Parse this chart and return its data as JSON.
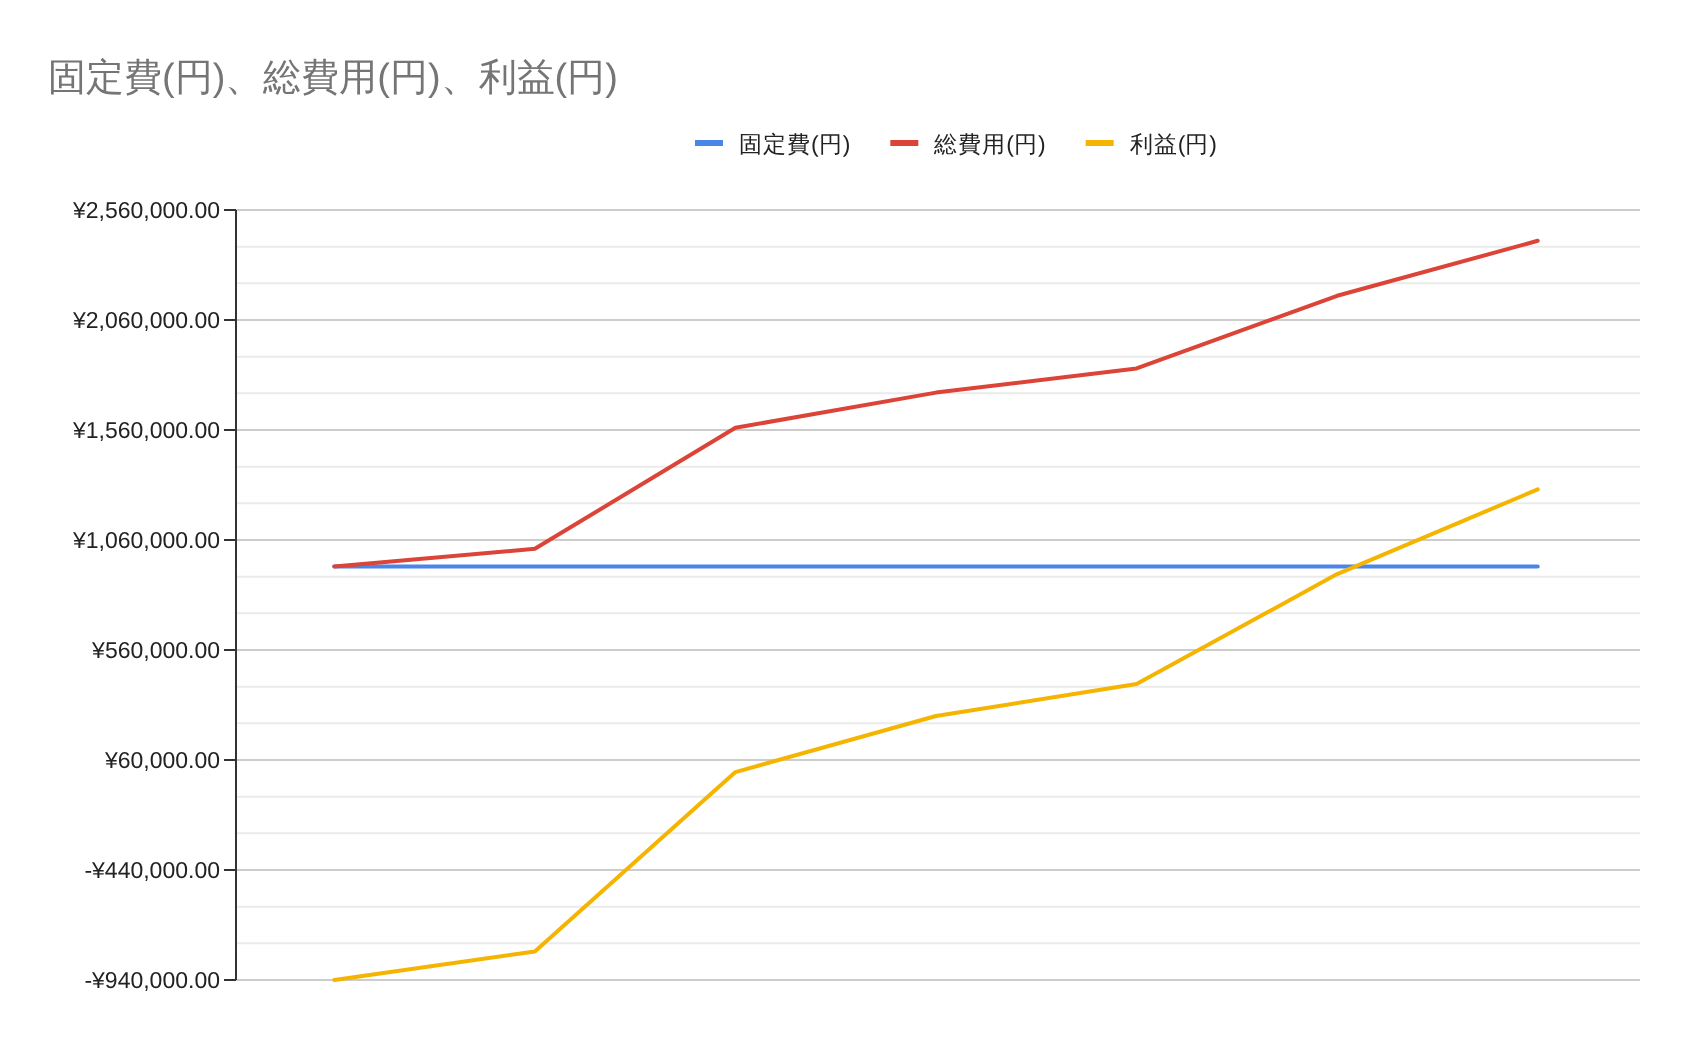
{
  "chart_data": {
    "type": "line",
    "title": "固定費(円)、総費用(円)、利益(円)",
    "categories": [
      null,
      null,
      null,
      null,
      null,
      null,
      null
    ],
    "series": [
      {
        "name": "固定費(円)",
        "color": "#4a86e8",
        "values": [
          940000,
          940000,
          940000,
          940000,
          940000,
          940000,
          940000
        ]
      },
      {
        "name": "総費用(円)",
        "color": "#db4437",
        "values": [
          940000,
          1020000,
          1570000,
          1730000,
          1840000,
          2170000,
          2420000
        ]
      },
      {
        "name": "利益(円)",
        "color": "#f4b400",
        "values": [
          -940000,
          -810000,
          5000,
          260000,
          405000,
          905000,
          1290000
        ]
      }
    ],
    "ylim": [
      -940000,
      2560000
    ],
    "yticks": [
      {
        "value": -940000,
        "label": "-¥940,000.00"
      },
      {
        "value": -440000,
        "label": "-¥440,000.00"
      },
      {
        "value": 60000,
        "label": "¥60,000.00"
      },
      {
        "value": 560000,
        "label": "¥560,000.00"
      },
      {
        "value": 1060000,
        "label": "¥1,060,000.00"
      },
      {
        "value": 1560000,
        "label": "¥1,560,000.00"
      },
      {
        "value": 2060000,
        "label": "¥2,060,000.00"
      },
      {
        "value": 2560000,
        "label": "¥2,560,000.00"
      }
    ],
    "grid": "y",
    "legend": "top",
    "marker": "none",
    "line_style": "solid"
  }
}
